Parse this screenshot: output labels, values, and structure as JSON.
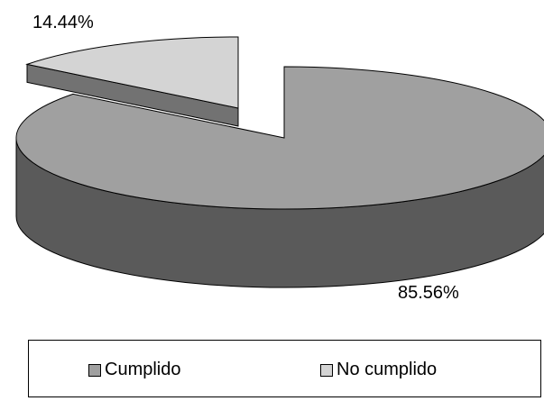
{
  "chart_data": {
    "type": "pie",
    "style": "3d-exploded",
    "slices": [
      {
        "label": "Cumplido",
        "value": 85.56,
        "value_label": "85.56%",
        "color": "#a0a0a0",
        "side_color": "#5a5a5a"
      },
      {
        "label": "No cumplido",
        "value": 14.44,
        "value_label": "14.44%",
        "color": "#d4d4d4",
        "side_color": "#727272"
      }
    ],
    "legend": {
      "position": "bottom",
      "items": [
        "Cumplido",
        "No cumplido"
      ]
    }
  }
}
